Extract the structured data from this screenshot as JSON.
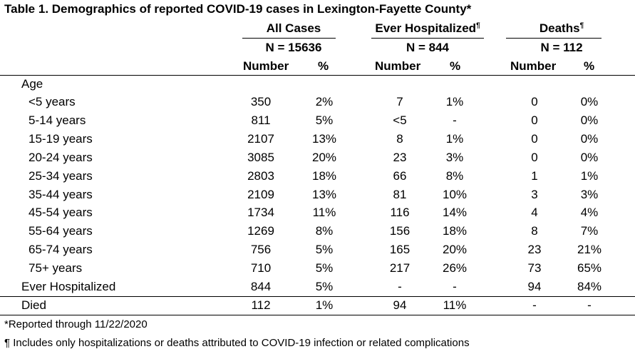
{
  "title": "Table 1. Demographics of reported COVID-19 cases in Lexington-Fayette County*",
  "groups": [
    {
      "name": "All Cases",
      "mark": "",
      "n": "N = 15636"
    },
    {
      "name": "Ever Hospitalized",
      "mark": "¶",
      "n": "N = 844"
    },
    {
      "name": "Deaths",
      "mark": "¶",
      "n": "N = 112"
    }
  ],
  "subheaders": [
    "Number",
    "%",
    "Number",
    "%",
    "Number",
    "%"
  ],
  "section_label": "Age",
  "rows": [
    {
      "label": "<5 years",
      "indent": true,
      "values": [
        "350",
        "2%",
        "7",
        "1%",
        "0",
        "0%"
      ]
    },
    {
      "label": "5-14 years",
      "indent": true,
      "values": [
        "811",
        "5%",
        "<5",
        "-",
        "0",
        "0%"
      ]
    },
    {
      "label": "15-19 years",
      "indent": true,
      "values": [
        "2107",
        "13%",
        "8",
        "1%",
        "0",
        "0%"
      ]
    },
    {
      "label": "20-24 years",
      "indent": true,
      "values": [
        "3085",
        "20%",
        "23",
        "3%",
        "0",
        "0%"
      ]
    },
    {
      "label": "25-34 years",
      "indent": true,
      "values": [
        "2803",
        "18%",
        "66",
        "8%",
        "1",
        "1%"
      ]
    },
    {
      "label": "35-44 years",
      "indent": true,
      "values": [
        "2109",
        "13%",
        "81",
        "10%",
        "3",
        "3%"
      ]
    },
    {
      "label": "45-54 years",
      "indent": true,
      "values": [
        "1734",
        "11%",
        "116",
        "14%",
        "4",
        "4%"
      ]
    },
    {
      "label": "55-64 years",
      "indent": true,
      "values": [
        "1269",
        "8%",
        "156",
        "18%",
        "8",
        "7%"
      ]
    },
    {
      "label": "65-74 years",
      "indent": true,
      "values": [
        "756",
        "5%",
        "165",
        "20%",
        "23",
        "21%"
      ]
    },
    {
      "label": "75+ years",
      "indent": true,
      "values": [
        "710",
        "5%",
        "217",
        "26%",
        "73",
        "65%"
      ]
    },
    {
      "label": "Ever Hospitalized",
      "indent": false,
      "values": [
        "844",
        "5%",
        "-",
        "-",
        "94",
        "84%"
      ]
    },
    {
      "label": "Died",
      "indent": false,
      "values": [
        "112",
        "1%",
        "94",
        "11%",
        "-",
        "-"
      ]
    }
  ],
  "footnotes": [
    "*Reported through 11/22/2020",
    "¶ Includes only hospitalizations or deaths attributed to COVID-19 infection or related complications"
  ]
}
